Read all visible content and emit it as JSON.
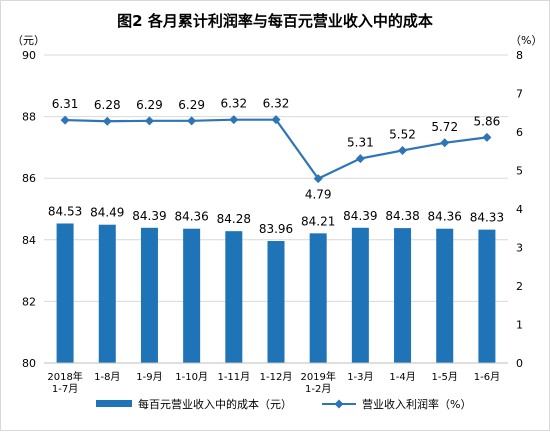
{
  "chart_data": {
    "type": "bar",
    "title": "图2 各月累计利润率与每百元营业收入中的成本",
    "left_unit": "（元）",
    "right_unit": "（%）",
    "categories": [
      "2018年\n1-7月",
      "1-8月",
      "1-9月",
      "1-10月",
      "1-11月",
      "1-12月",
      "2019年\n1-2月",
      "1-3月",
      "1-4月",
      "1-5月",
      "1-6月"
    ],
    "left_axis": {
      "min": 80,
      "max": 90,
      "ticks": [
        80,
        82,
        84,
        86,
        88,
        90
      ]
    },
    "right_axis": {
      "min": 0,
      "max": 8,
      "ticks": [
        0,
        1,
        2,
        3,
        4,
        5,
        6,
        7,
        8
      ]
    },
    "series": [
      {
        "name": "每百元营业收入中的成本（元）",
        "type": "bar",
        "axis": "left",
        "color": "#1f73b7",
        "values": [
          84.53,
          84.49,
          84.39,
          84.36,
          84.28,
          83.96,
          84.21,
          84.39,
          84.38,
          84.36,
          84.33
        ],
        "labels": [
          "84.53",
          "84.49",
          "84.39",
          "84.36",
          "84.28",
          "83.96",
          "84.21",
          "84.39",
          "84.38",
          "84.36",
          "84.33"
        ]
      },
      {
        "name": "营业收入利润率（%）",
        "type": "line",
        "axis": "right",
        "color": "#2e75b6",
        "values": [
          6.31,
          6.28,
          6.29,
          6.29,
          6.32,
          6.32,
          4.79,
          5.31,
          5.52,
          5.72,
          5.86
        ],
        "labels": [
          "6.31",
          "6.28",
          "6.29",
          "6.29",
          "6.32",
          "6.32",
          "4.79",
          "5.31",
          "5.52",
          "5.72",
          "5.86"
        ]
      }
    ],
    "legend_position": "bottom",
    "grid": "horizontal"
  }
}
